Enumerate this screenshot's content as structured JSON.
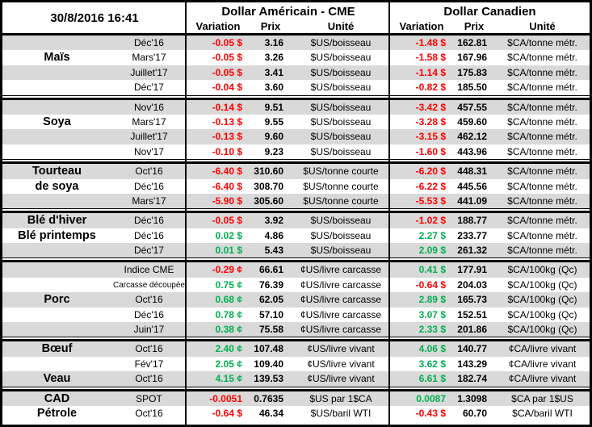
{
  "meta": {
    "timestamp": "30/8/2016 16:41"
  },
  "header": {
    "usd_title": "Dollar Américain - CME",
    "cad_title": "Dollar Canadien",
    "columns": {
      "variation": "Variation",
      "prix": "Prix",
      "unite": "Unité"
    }
  },
  "colors": {
    "negative": "#FF0000",
    "positive": "#00B050",
    "stripe": "#D9D9D9",
    "border": "#000000"
  },
  "sections": [
    {
      "commodity": "Maïs",
      "rows": [
        {
          "name": "",
          "month": "Déc'16",
          "us": {
            "var": "-0.05 $",
            "prix": "3.16",
            "unit": "$US/boisseau"
          },
          "ca": {
            "var": "-1.48 $",
            "prix": "162.81",
            "unit": "$CA/tonne métr."
          }
        },
        {
          "name": "Maïs",
          "month": "Mars'17",
          "us": {
            "var": "-0.05 $",
            "prix": "3.26",
            "unit": "$US/boisseau"
          },
          "ca": {
            "var": "-1.58 $",
            "prix": "167.96",
            "unit": "$CA/tonne métr."
          }
        },
        {
          "name": "",
          "month": "Juillet'17",
          "us": {
            "var": "-0.05 $",
            "prix": "3.41",
            "unit": "$US/boisseau"
          },
          "ca": {
            "var": "-1.14 $",
            "prix": "175.83",
            "unit": "$CA/tonne métr."
          }
        },
        {
          "name": "",
          "month": "Déc'17",
          "us": {
            "var": "-0.04 $",
            "prix": "3.60",
            "unit": "$US/boisseau"
          },
          "ca": {
            "var": "-0.82 $",
            "prix": "185.50",
            "unit": "$CA/tonne métr."
          }
        }
      ]
    },
    {
      "commodity": "Soya",
      "rows": [
        {
          "name": "",
          "month": "Nov'16",
          "us": {
            "var": "-0.14 $",
            "prix": "9.51",
            "unit": "$US/boisseau"
          },
          "ca": {
            "var": "-3.42 $",
            "prix": "457.55",
            "unit": "$CA/tonne métr."
          }
        },
        {
          "name": "Soya",
          "month": "Mars'17",
          "us": {
            "var": "-0.13 $",
            "prix": "9.55",
            "unit": "$US/boisseau"
          },
          "ca": {
            "var": "-3.28 $",
            "prix": "459.60",
            "unit": "$CA/tonne métr."
          }
        },
        {
          "name": "",
          "month": "Juillet'17",
          "us": {
            "var": "-0.13 $",
            "prix": "9.60",
            "unit": "$US/boisseau"
          },
          "ca": {
            "var": "-3.15 $",
            "prix": "462.12",
            "unit": "$CA/tonne métr."
          }
        },
        {
          "name": "",
          "month": "Nov'17",
          "us": {
            "var": "-0.10 $",
            "prix": "9.23",
            "unit": "$US/boisseau"
          },
          "ca": {
            "var": "-1.60 $",
            "prix": "443.96",
            "unit": "$CA/tonne métr."
          }
        }
      ]
    },
    {
      "commodity": "Tourteau de soya",
      "rows": [
        {
          "name": "Tourteau",
          "month": "Oct'16",
          "us": {
            "var": "-6.40 $",
            "prix": "310.60",
            "unit": "$US/tonne courte"
          },
          "ca": {
            "var": "-6.20 $",
            "prix": "448.31",
            "unit": "$CA/tonne métr."
          }
        },
        {
          "name": "de soya",
          "month": "Déc'16",
          "us": {
            "var": "-6.40 $",
            "prix": "308.70",
            "unit": "$US/tonne courte"
          },
          "ca": {
            "var": "-6.22 $",
            "prix": "445.56",
            "unit": "$CA/tonne métr."
          }
        },
        {
          "name": "",
          "month": "Mars'17",
          "us": {
            "var": "-5.90 $",
            "prix": "305.60",
            "unit": "$US/tonne courte"
          },
          "ca": {
            "var": "-5.53 $",
            "prix": "441.09",
            "unit": "$CA/tonne métr."
          }
        }
      ]
    },
    {
      "commodity": "Blé",
      "rows": [
        {
          "name": "Blé d'hiver",
          "month": "Déc'16",
          "us": {
            "var": "-0.05 $",
            "prix": "3.92",
            "unit": "$US/boisseau"
          },
          "ca": {
            "var": "-1.02 $",
            "prix": "188.77",
            "unit": "$CA/tonne métr."
          }
        },
        {
          "name": "Blé printemps",
          "month": "Déc'16",
          "us": {
            "var": "0.02 $",
            "prix": "4.86",
            "unit": "$US/boisseau"
          },
          "ca": {
            "var": "2.27 $",
            "prix": "233.77",
            "unit": "$CA/tonne métr."
          }
        },
        {
          "name": "",
          "month": "Déc'17",
          "us": {
            "var": "0.01 $",
            "prix": "5.43",
            "unit": "$US/boisseau"
          },
          "ca": {
            "var": "2.09 $",
            "prix": "261.32",
            "unit": "$CA/tonne métr."
          }
        }
      ]
    },
    {
      "commodity": "Porc",
      "rows": [
        {
          "name": "",
          "month": "Indice CME",
          "us": {
            "var": "-0.29 ¢",
            "prix": "66.61",
            "unit": "¢US/livre carcasse"
          },
          "ca": {
            "var": "0.41 $",
            "prix": "177.91",
            "unit": "$CA/100kg (Qc)"
          }
        },
        {
          "name": "",
          "month": "Carcasse découpée",
          "us": {
            "var": "0.75 ¢",
            "prix": "76.39",
            "unit": "¢US/livre carcasse"
          },
          "ca": {
            "var": "-0.64 $",
            "prix": "204.03",
            "unit": "$CA/100kg (Qc)"
          }
        },
        {
          "name": "Porc",
          "month": "Oct'16",
          "us": {
            "var": "0.68 ¢",
            "prix": "62.05",
            "unit": "¢US/livre carcasse"
          },
          "ca": {
            "var": "2.89 $",
            "prix": "165.73",
            "unit": "$CA/100kg (Qc)"
          }
        },
        {
          "name": "",
          "month": "Déc'16",
          "us": {
            "var": "0.78 ¢",
            "prix": "57.10",
            "unit": "¢US/livre carcasse"
          },
          "ca": {
            "var": "3.07 $",
            "prix": "152.51",
            "unit": "$CA/100kg (Qc)"
          }
        },
        {
          "name": "",
          "month": "Juin'17",
          "us": {
            "var": "0.38 ¢",
            "prix": "75.58",
            "unit": "¢US/livre carcasse"
          },
          "ca": {
            "var": "2.33 $",
            "prix": "201.86",
            "unit": "$CA/100kg (Qc)"
          }
        }
      ]
    },
    {
      "commodity": "Bœuf / Veau",
      "rows": [
        {
          "name": "Bœuf",
          "month": "Oct'16",
          "us": {
            "var": "2.40 ¢",
            "prix": "107.48",
            "unit": "¢US/livre vivant"
          },
          "ca": {
            "var": "4.06 $",
            "prix": "140.77",
            "unit": "¢CA/livre vivant"
          }
        },
        {
          "name": "",
          "month": "Fév'17",
          "us": {
            "var": "2.05 ¢",
            "prix": "109.40",
            "unit": "¢US/livre vivant"
          },
          "ca": {
            "var": "3.62 $",
            "prix": "143.29",
            "unit": "¢CA/livre vivant"
          }
        },
        {
          "name": "Veau",
          "month": "Oct'16",
          "us": {
            "var": "4.15 ¢",
            "prix": "139.53",
            "unit": "¢US/livre vivant"
          },
          "ca": {
            "var": "6.61 $",
            "prix": "182.74",
            "unit": "¢CA/livre vivant"
          }
        }
      ]
    },
    {
      "commodity": "CAD / Pétrole",
      "rows": [
        {
          "name": "CAD",
          "month": "SPOT",
          "us": {
            "var": "-0.0051",
            "prix": "0.7635",
            "unit": "$US par 1$CA"
          },
          "ca": {
            "var": "0.0087",
            "prix": "1.3098",
            "unit": "$CA par 1$US"
          }
        },
        {
          "name": "Pétrole",
          "month": "Oct'16",
          "us": {
            "var": "-0.64 $",
            "prix": "46.34",
            "unit": "$US/baril WTI"
          },
          "ca": {
            "var": "-0.43 $",
            "prix": "60.70",
            "unit": "$CA/baril WTI"
          }
        }
      ]
    }
  ]
}
